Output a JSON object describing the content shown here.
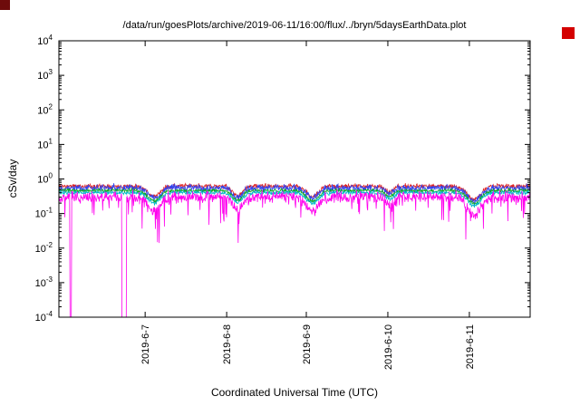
{
  "markers": {
    "top_left": {
      "color": "#6e0b0b"
    },
    "top_right": {
      "color": "#d40000"
    }
  },
  "chart_data": {
    "type": "line",
    "title": "/data/run/goesPlots/archive/2019-06-11/16:00/flux/../bryn/5daysEarthData.plot",
    "xlabel": "Coordinated Universal Time (UTC)",
    "ylabel": "cSv/day",
    "y_scale": "log",
    "ylim": [
      0.0001,
      10000
    ],
    "y_tick_exponents": [
      -4,
      -3,
      -2,
      -1,
      0,
      1,
      2,
      3,
      4
    ],
    "x_ticks": [
      {
        "label": "2019-6-7",
        "pos": 0.183
      },
      {
        "label": "2019-6-8",
        "pos": 0.356
      },
      {
        "label": "2019-6-9",
        "pos": 0.525
      },
      {
        "label": "2019-6-10",
        "pos": 0.698
      },
      {
        "label": "2019-6-11",
        "pos": 0.871
      }
    ],
    "grid": false,
    "legend": "none",
    "n_points": 1100,
    "dips": [
      {
        "center": 0.202,
        "depth": 0.3,
        "width": 0.018
      },
      {
        "center": 0.379,
        "depth": 0.28,
        "width": 0.015
      },
      {
        "center": 0.538,
        "depth": 0.3,
        "width": 0.018
      },
      {
        "center": 0.702,
        "depth": 0.18,
        "width": 0.012
      },
      {
        "center": 0.881,
        "depth": 0.38,
        "width": 0.02
      }
    ],
    "series": [
      {
        "name": "red",
        "color": "#dd2222",
        "baseline": 0.62,
        "noise": 0.1,
        "seed": 11
      },
      {
        "name": "blue",
        "color": "#3344ee",
        "baseline": 0.55,
        "noise": 0.15,
        "seed": 22
      },
      {
        "name": "green",
        "color": "#11aa22",
        "baseline": 0.46,
        "noise": 0.08,
        "seed": 33
      },
      {
        "name": "cyan",
        "color": "#00b8cc",
        "baseline": 0.4,
        "noise": 0.08,
        "seed": 44
      },
      {
        "name": "magenta",
        "color": "#ff00ee",
        "baseline": 0.3,
        "noise": 0.25,
        "seed": 55,
        "dip_scale": 1.4,
        "down_spike_prob": 0.07,
        "down_spike_depth": 0.75,
        "floor_spikes": [
          {
            "pos": 0.025,
            "width": 0.002
          },
          {
            "pos": 0.138,
            "width": 0.005
          }
        ]
      }
    ]
  }
}
